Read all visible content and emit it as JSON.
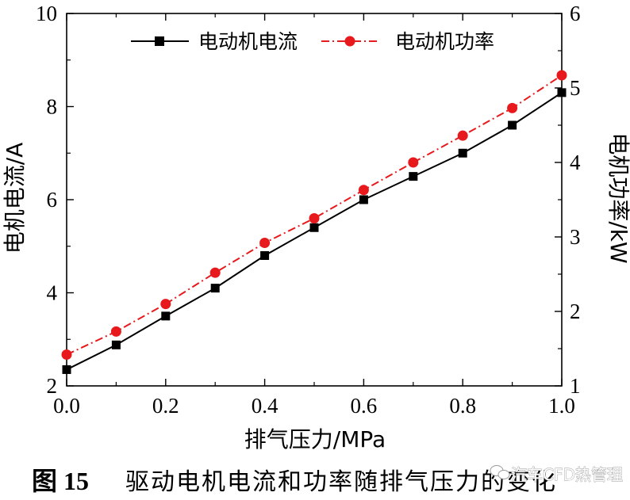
{
  "chart_data": {
    "type": "line",
    "xlabel": "排气压力/MPa",
    "ylabel_left": "电机电流/A",
    "ylabel_right": "电机功率/kW",
    "xlim": [
      0,
      1.0
    ],
    "ylim_left": [
      2,
      10
    ],
    "ylim_right": [
      1,
      6
    ],
    "x_ticks": [
      "0.0",
      "0.2",
      "0.4",
      "0.6",
      "0.8",
      "1.0"
    ],
    "y_left_ticks": [
      "2",
      "4",
      "6",
      "8",
      "10"
    ],
    "y_right_ticks": [
      "1",
      "2",
      "3",
      "4",
      "5",
      "6"
    ],
    "legend_position": "top",
    "grid": false,
    "x": [
      0.0,
      0.1,
      0.2,
      0.3,
      0.4,
      0.5,
      0.6,
      0.7,
      0.8,
      0.9,
      1.0
    ],
    "series": [
      {
        "name": "电动机电流",
        "axis": "left",
        "color": "#000000",
        "marker": "square",
        "line_style": "solid",
        "values": [
          2.35,
          2.88,
          3.5,
          4.1,
          4.8,
          5.4,
          6.0,
          6.5,
          7.0,
          7.6,
          8.3
        ]
      },
      {
        "name": "电动机功率",
        "axis": "right",
        "color": "#e8191c",
        "marker": "circle",
        "line_style": "dash-dot",
        "values": [
          1.42,
          1.73,
          2.1,
          2.52,
          2.92,
          3.25,
          3.63,
          4.0,
          4.36,
          4.73,
          5.17
        ]
      }
    ]
  },
  "caption": {
    "number": "图 15",
    "text": "驱动电机电流和功率随排气压力的变化"
  },
  "watermark": {
    "text": "汽车CFD热管理",
    "icon": "wechat-logo-icon"
  }
}
